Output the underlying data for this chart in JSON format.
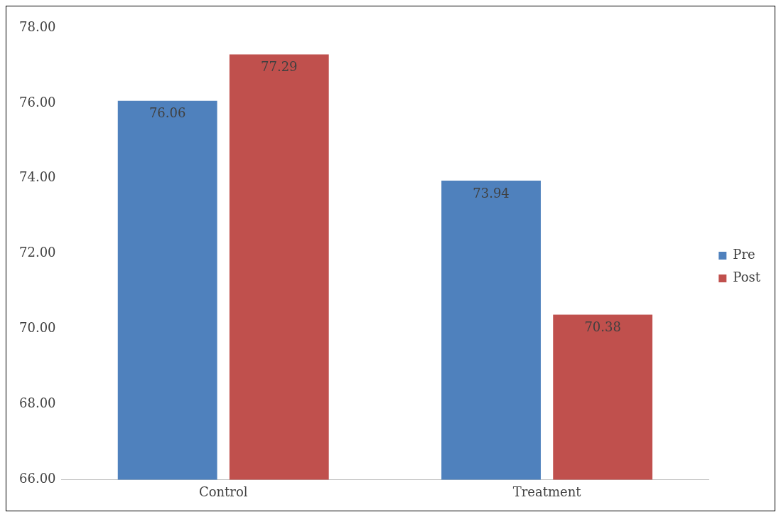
{
  "chart_data": {
    "type": "bar",
    "categories": [
      "Control",
      "Treatment"
    ],
    "series": [
      {
        "name": "Pre",
        "color": "#4f81bd",
        "values": [
          76.06,
          73.94
        ]
      },
      {
        "name": "Post",
        "color": "#c0504d",
        "values": [
          77.29,
          70.38
        ]
      }
    ],
    "ylim": [
      66,
      78
    ],
    "yticks": [
      {
        "value": 66,
        "label": "66.00"
      },
      {
        "value": 68,
        "label": "68.00"
      },
      {
        "value": 70,
        "label": "70.00"
      },
      {
        "value": 72,
        "label": "72.00"
      },
      {
        "value": 74,
        "label": "74.00"
      },
      {
        "value": 76,
        "label": "76.00"
      },
      {
        "value": 78,
        "label": "78.00"
      }
    ],
    "grid": false,
    "legend": "right",
    "data_labels": true
  }
}
